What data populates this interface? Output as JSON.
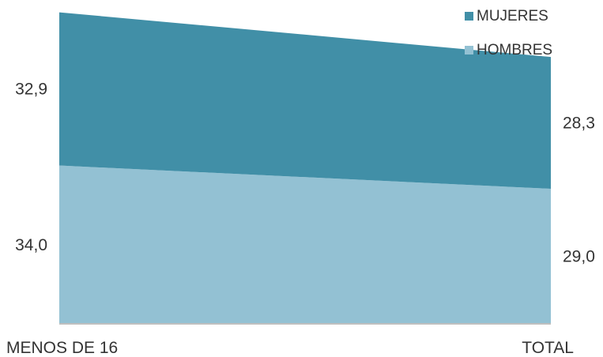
{
  "chart_data": {
    "type": "area",
    "stacked": true,
    "categories": [
      "MENOS DE 16",
      "TOTAL"
    ],
    "series": [
      {
        "name": "HOMBRES",
        "values": [
          34.0,
          29.0
        ],
        "labels": [
          "34,0",
          "29,0"
        ],
        "color": "#93C1D3"
      },
      {
        "name": "MUJERES",
        "values": [
          32.9,
          28.3
        ],
        "labels": [
          "32,9",
          "28,3"
        ],
        "color": "#418FA7"
      }
    ],
    "legend_position": "top-right",
    "grid": false,
    "ylim": [
      0,
      67
    ]
  }
}
